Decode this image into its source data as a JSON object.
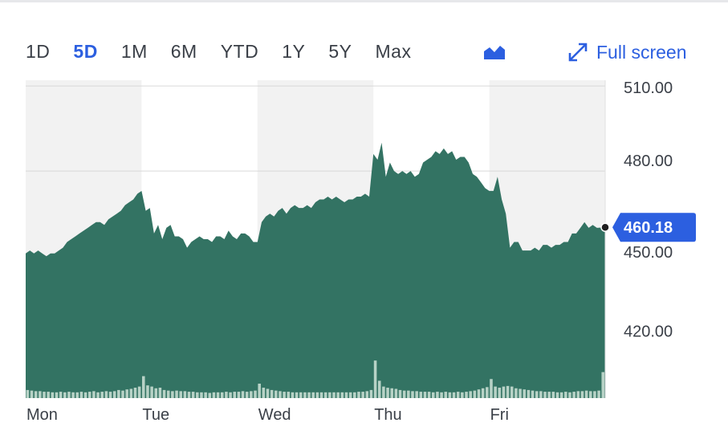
{
  "range_tabs": [
    {
      "label": "1D",
      "active": false
    },
    {
      "label": "5D",
      "active": true
    },
    {
      "label": "1M",
      "active": false
    },
    {
      "label": "6M",
      "active": false
    },
    {
      "label": "YTD",
      "active": false
    },
    {
      "label": "1Y",
      "active": false
    },
    {
      "label": "5Y",
      "active": false
    },
    {
      "label": "Max",
      "active": false
    }
  ],
  "chart_type_icon": "area-chart-icon",
  "fullscreen": {
    "label": "Full screen",
    "icon": "expand-arrows-icon"
  },
  "colors": {
    "area": "#337363",
    "accent": "#2c5fe0",
    "volume": "#b7d2c6",
    "band": "#f2f2f2",
    "grid": "#d9d9d9"
  },
  "chart_data": {
    "type": "area",
    "title": "",
    "xlabel": "",
    "ylabel": "",
    "ylim": [
      400,
      512
    ],
    "y_ticks": [
      {
        "value": 510,
        "label": "510.00"
      },
      {
        "value": 480,
        "label": "480.00"
      },
      {
        "value": 450,
        "label": "450.00"
      },
      {
        "value": 420,
        "label": "420.00"
      }
    ],
    "days": [
      "Mon",
      "Tue",
      "Wed",
      "Thu",
      "Fri"
    ],
    "last_price": {
      "value": 460.18,
      "label": "460.18"
    },
    "grid": true,
    "series": [
      {
        "day": "Mon",
        "price": [
          451,
          452,
          451,
          452,
          451,
          450,
          451,
          451,
          452,
          453,
          455,
          456,
          457,
          458,
          459,
          460,
          461,
          462,
          462,
          461,
          463,
          464,
          465,
          466,
          468,
          469,
          470,
          472
        ],
        "volume": [
          0.14,
          0.13,
          0.12,
          0.12,
          0.11,
          0.11,
          0.1,
          0.1,
          0.11,
          0.1,
          0.11,
          0.1,
          0.1,
          0.11,
          0.1,
          0.11,
          0.12,
          0.1,
          0.11,
          0.12,
          0.11,
          0.12,
          0.14,
          0.13,
          0.15,
          0.16,
          0.18,
          0.2
        ]
      },
      {
        "day": "Tue",
        "price": [
          473,
          466,
          467,
          458,
          461,
          456,
          460,
          461,
          457,
          457,
          456,
          453,
          455,
          456,
          457,
          456,
          456,
          455,
          457,
          457,
          456,
          459,
          457,
          456,
          458,
          458,
          457,
          455
        ],
        "volume": [
          0.38,
          0.22,
          0.2,
          0.17,
          0.18,
          0.14,
          0.13,
          0.12,
          0.13,
          0.12,
          0.12,
          0.11,
          0.11,
          0.1,
          0.1,
          0.1,
          0.09,
          0.1,
          0.1,
          0.1,
          0.11,
          0.1,
          0.11,
          0.11,
          0.12,
          0.11,
          0.12,
          0.13
        ]
      },
      {
        "day": "Wed",
        "price": [
          455,
          462,
          464,
          465,
          464,
          466,
          467,
          465,
          467,
          468,
          467,
          467,
          468,
          467,
          469,
          470,
          470,
          471,
          470,
          471,
          470,
          469,
          470,
          470,
          471,
          471,
          472,
          471
        ],
        "volume": [
          0.25,
          0.18,
          0.16,
          0.14,
          0.13,
          0.12,
          0.11,
          0.11,
          0.1,
          0.1,
          0.1,
          0.1,
          0.1,
          0.1,
          0.1,
          0.1,
          0.1,
          0.1,
          0.1,
          0.1,
          0.1,
          0.1,
          0.1,
          0.1,
          0.11,
          0.11,
          0.12,
          0.14
        ]
      },
      {
        "day": "Thu",
        "price": [
          486,
          484,
          490,
          478,
          483,
          480,
          479,
          480,
          479,
          480,
          478,
          479,
          483,
          484,
          485,
          487,
          486,
          488,
          486,
          487,
          484,
          485,
          485,
          483,
          479,
          478,
          476,
          474
        ],
        "volume": [
          0.65,
          0.3,
          0.2,
          0.18,
          0.17,
          0.16,
          0.14,
          0.13,
          0.13,
          0.12,
          0.12,
          0.11,
          0.11,
          0.11,
          0.1,
          0.11,
          0.1,
          0.11,
          0.1,
          0.1,
          0.11,
          0.1,
          0.11,
          0.12,
          0.13,
          0.15,
          0.17,
          0.19
        ]
      },
      {
        "day": "Fri",
        "price": [
          473,
          473,
          478,
          470,
          465,
          453,
          455,
          455,
          452,
          452,
          452,
          453,
          452,
          454,
          454,
          453,
          454,
          454,
          455,
          455,
          458,
          458,
          460,
          462,
          460,
          461,
          460,
          460.18
        ],
        "volume": [
          0.33,
          0.2,
          0.18,
          0.2,
          0.21,
          0.2,
          0.17,
          0.16,
          0.15,
          0.14,
          0.13,
          0.12,
          0.12,
          0.11,
          0.11,
          0.11,
          0.1,
          0.1,
          0.11,
          0.1,
          0.11,
          0.12,
          0.12,
          0.13,
          0.12,
          0.12,
          0.13,
          0.45
        ]
      }
    ]
  }
}
